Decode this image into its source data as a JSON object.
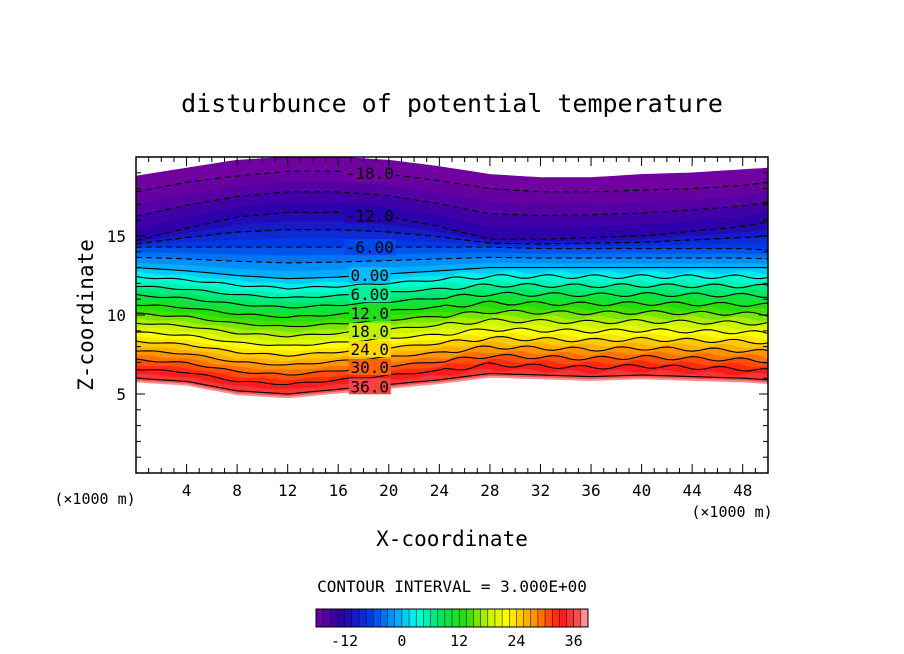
{
  "chart_data": {
    "type": "contour",
    "title": "disturbunce of potential temperature",
    "xlabel": "X-coordinate",
    "ylabel": "Z-coordinate",
    "x_unit": "(×1000 m)",
    "y_unit": "(×1000 m)",
    "xlim": [
      0,
      50
    ],
    "ylim": [
      0,
      20
    ],
    "x_ticks": [
      4,
      8,
      12,
      16,
      20,
      24,
      28,
      32,
      36,
      40,
      44,
      48
    ],
    "y_ticks": [
      5,
      10,
      15
    ],
    "contour_interval_label": "CONTOUR INTERVAL = 3.000E+00",
    "contour_interval": 3,
    "levels_shown": [
      "-18.0",
      "-12.0",
      "-6.00",
      "0.00",
      "6.00",
      "12.0",
      "18.0",
      "24.0",
      "30.0",
      "36.0"
    ],
    "colorbar": {
      "min": -18,
      "max": 39,
      "tick_labels": [
        "-12",
        "0",
        "12",
        "24",
        "36"
      ],
      "tick_values": [
        -12,
        0,
        12,
        24,
        36
      ],
      "colormap": "rainbow (purple-blue-cyan-green-yellow-orange-red-pink)"
    },
    "profiles": {
      "x": [
        0,
        4,
        8,
        12,
        16,
        20,
        24,
        28,
        32,
        36,
        40,
        44,
        48,
        50
      ],
      "z_at_36": [
        6.0,
        5.8,
        5.2,
        5.0,
        5.3,
        5.6,
        5.9,
        6.3,
        6.2,
        6.1,
        6.2,
        6.1,
        6.0,
        5.9
      ],
      "z_at_0": [
        13.0,
        12.8,
        12.5,
        12.3,
        12.4,
        12.6,
        12.8,
        13.0,
        13.0,
        13.0,
        13.0,
        13.0,
        13.0,
        13.0
      ],
      "z_at_minus6": [
        14.3,
        14.3,
        14.3,
        14.3,
        14.3,
        14.3,
        14.3,
        14.3,
        14.2,
        14.2,
        14.2,
        14.2,
        14.2,
        14.1
      ],
      "z_at_minus12": [
        14.7,
        15.5,
        16.2,
        16.5,
        16.5,
        16.2,
        15.6,
        14.8,
        14.8,
        14.9,
        15.0,
        15.3,
        15.6,
        15.9
      ],
      "z_at_minus18": [
        17.8,
        18.4,
        18.8,
        19.1,
        19.1,
        18.9,
        18.5,
        18.0,
        17.8,
        17.8,
        17.9,
        18.0,
        18.2,
        18.4
      ],
      "z_top_fill": [
        18.8,
        19.3,
        19.8,
        20.0,
        20.0,
        19.8,
        19.4,
        18.9,
        18.7,
        18.7,
        18.9,
        19.0,
        19.2,
        19.3
      ]
    }
  }
}
